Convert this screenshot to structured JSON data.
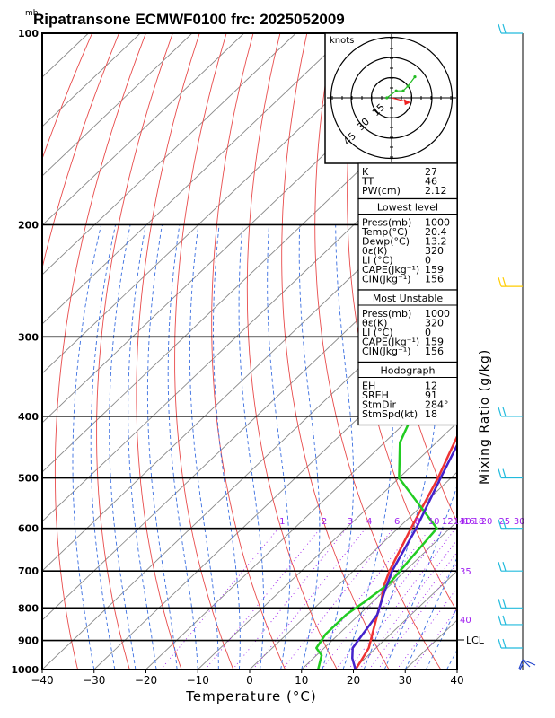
{
  "chart_data": {
    "type": "line",
    "title": "Ripatransone ECMWF0100 frc: 2025052009",
    "unit_mb": "mb",
    "xlabel": "Temperature (°C)",
    "ylabel_right": "Mixing Ratio (g/kg)",
    "x_ticks": [
      "−40",
      "−30",
      "−20",
      "−10",
      "0",
      "10",
      "20",
      "30",
      "40"
    ],
    "y_ticks": [
      {
        "p": 100,
        "label": "100"
      },
      {
        "p": 200,
        "label": "200"
      },
      {
        "p": 300,
        "label": "300"
      },
      {
        "p": 400,
        "label": "400"
      },
      {
        "p": 500,
        "label": "500"
      },
      {
        "p": 600,
        "label": "600"
      },
      {
        "p": 700,
        "label": "700"
      },
      {
        "p": 800,
        "label": "800"
      },
      {
        "p": 900,
        "label": "900"
      },
      {
        "p": 1000,
        "label": "1000"
      }
    ],
    "xlim": [
      -40,
      40
    ],
    "ylim_mb": [
      1000,
      100
    ],
    "mixing_ratio_labels": [
      "1",
      "2",
      "3",
      "4",
      "6",
      "8",
      "10",
      "12",
      "14",
      "16",
      "18",
      "20",
      "25",
      "30"
    ],
    "dry_adiabat_labels": [
      "30",
      "35",
      "40"
    ],
    "lcl_label": "LCL",
    "lcl_p": 905,
    "series": [
      {
        "name": "Temperature",
        "color": "#ee3333",
        "points": [
          [
            20.4,
            1000
          ],
          [
            19.5,
            960
          ],
          [
            18.6,
            925
          ],
          [
            16.5,
            880
          ],
          [
            13.5,
            820
          ],
          [
            11.5,
            780
          ],
          [
            9.0,
            740
          ],
          [
            7.0,
            700
          ],
          [
            2.5,
            600
          ],
          [
            -2.5,
            500
          ],
          [
            -9.5,
            400
          ],
          [
            -18.0,
            300
          ],
          [
            -24.5,
            250
          ],
          [
            -19.0,
            200
          ],
          [
            -9.5,
            150
          ],
          [
            1.5,
            100
          ]
        ]
      },
      {
        "name": "Dewpoint",
        "color": "#22cc22",
        "points": [
          [
            13.2,
            1000
          ],
          [
            11.0,
            950
          ],
          [
            8.5,
            925
          ],
          [
            7.5,
            880
          ],
          [
            7.5,
            820
          ],
          [
            8.5,
            780
          ],
          [
            9.5,
            730
          ],
          [
            9.0,
            700
          ],
          [
            7.5,
            600
          ],
          [
            -10.0,
            500
          ],
          [
            -17.0,
            440
          ],
          [
            -20.0,
            400
          ],
          [
            -35.0,
            300
          ],
          [
            -47.0,
            250
          ],
          [
            -57.0,
            200
          ],
          [
            -70.0,
            150
          ],
          [
            -82.0,
            100
          ]
        ]
      },
      {
        "name": "Parcel",
        "color": "#4422cc",
        "points": [
          [
            20.4,
            1000
          ],
          [
            17.5,
            960
          ],
          [
            15.5,
            925
          ],
          [
            15.0,
            900
          ],
          [
            13.5,
            820
          ],
          [
            10.5,
            760
          ],
          [
            7.5,
            700
          ],
          [
            3.5,
            600
          ],
          [
            -2.0,
            500
          ],
          [
            -8.5,
            400
          ],
          [
            -18.0,
            300
          ],
          [
            -24.5,
            250
          ],
          [
            -33.0,
            200
          ],
          [
            -45.0,
            150
          ],
          [
            -65.0,
            100
          ]
        ]
      }
    ],
    "hodograph": {
      "label": "knots",
      "ring_labels": [
        "15",
        "30",
        "45"
      ],
      "trace": [
        [
          -2,
          0
        ],
        [
          2,
          3
        ],
        [
          5,
          3
        ],
        [
          7,
          5
        ],
        [
          10,
          9
        ]
      ],
      "storm_motion": [
        8,
        -2
      ]
    },
    "stats": [
      {
        "k": "K",
        "v": "27"
      },
      {
        "k": "TT",
        "v": "46"
      },
      {
        "k": "PW(cm)",
        "v": "2.12"
      }
    ],
    "lowest_level": {
      "header": "Lowest level",
      "rows": [
        {
          "k": "Press(mb)",
          "v": "1000"
        },
        {
          "k": "Temp(°C)",
          "v": "20.4"
        },
        {
          "k": "Dewp(°C)",
          "v": "13.2"
        },
        {
          "k": "θε(K)",
          "v": "320"
        },
        {
          "k": "LI (°C)",
          "v": "0"
        },
        {
          "k": "CAPE(Jkg⁻¹)",
          "v": "159"
        },
        {
          "k": "CIN(Jkg⁻¹)",
          "v": "156"
        }
      ]
    },
    "most_unstable": {
      "header": "Most Unstable",
      "rows": [
        {
          "k": "Press(mb)",
          "v": "1000"
        },
        {
          "k": "θε(K)",
          "v": "320"
        },
        {
          "k": "LI (°C)",
          "v": "0"
        },
        {
          "k": "CAPE(Jkg⁻¹)",
          "v": "159"
        },
        {
          "k": "CIN(Jkg⁻¹)",
          "v": "156"
        }
      ]
    },
    "hodograph_box": {
      "header": "Hodograph",
      "rows": [
        {
          "k": "EH",
          "v": "12"
        },
        {
          "k": "SREH",
          "v": "91"
        },
        {
          "k": "StmDir",
          "v": "284°"
        },
        {
          "k": "StmSpd(kt)",
          "v": "18"
        }
      ]
    }
  }
}
